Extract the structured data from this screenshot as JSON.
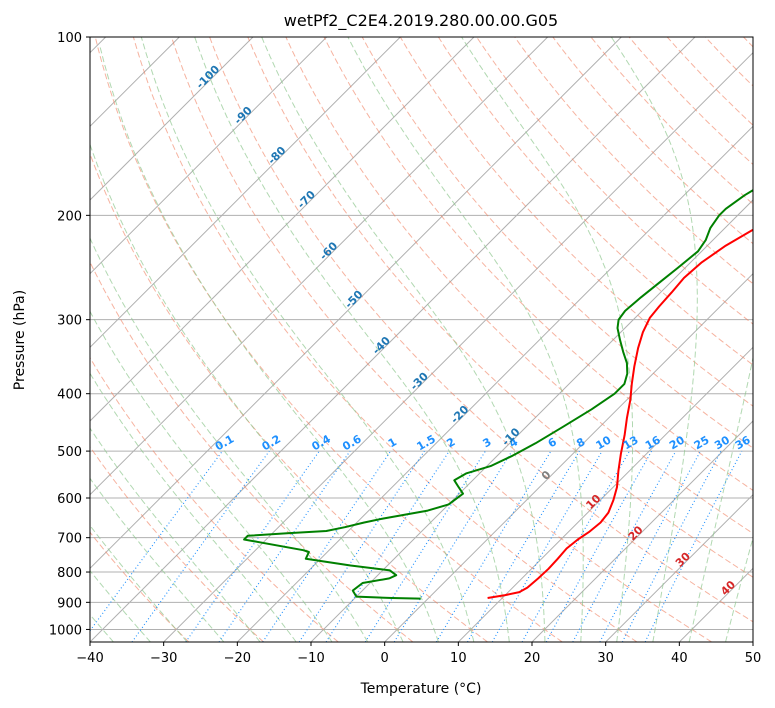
{
  "chart_data": {
    "type": "line",
    "title": "wetPf2_C2E4.2019.280.00.00.G05",
    "xlabel": "Temperature (°C)",
    "ylabel": "Pressure (hPa)",
    "xlim": [
      -40,
      50
    ],
    "ylim": [
      1050,
      100
    ],
    "y_scale": "log",
    "grid": true,
    "x_ticks": [
      -40,
      -30,
      -20,
      -10,
      0,
      10,
      20,
      30,
      40,
      50
    ],
    "y_ticks": [
      100,
      200,
      300,
      400,
      500,
      600,
      700,
      800,
      900,
      1000
    ],
    "series": [
      {
        "color": "#ff0000",
        "points": [
          [
            8,
            885
          ],
          [
            10,
            875
          ],
          [
            11.5,
            865
          ],
          [
            12,
            850
          ],
          [
            12.2,
            820
          ],
          [
            12.3,
            790
          ],
          [
            12.2,
            760
          ],
          [
            12.0,
            730
          ],
          [
            12.3,
            705
          ],
          [
            12.8,
            685
          ],
          [
            13.1,
            660
          ],
          [
            12.8,
            635
          ],
          [
            11.8,
            605
          ],
          [
            10.5,
            575
          ],
          [
            8.5,
            540
          ],
          [
            6.5,
            505
          ],
          [
            4.5,
            470
          ],
          [
            2.5,
            440
          ],
          [
            0.5,
            410
          ],
          [
            -1.5,
            385
          ],
          [
            -3.5,
            360
          ],
          [
            -5.5,
            335
          ],
          [
            -7,
            315
          ],
          [
            -8,
            298
          ],
          [
            -8.3,
            285
          ],
          [
            -8.5,
            270
          ],
          [
            -8.8,
            255
          ],
          [
            -8.5,
            240
          ],
          [
            -7.5,
            225
          ],
          [
            -6,
            212
          ],
          [
            -4,
            200
          ],
          [
            -2,
            190
          ],
          [
            0,
            180
          ],
          [
            2,
            172
          ],
          [
            5,
            164
          ],
          [
            8,
            157
          ],
          [
            12,
            150
          ],
          [
            14,
            143
          ],
          [
            15,
            136
          ],
          [
            16,
            130
          ],
          [
            17,
            125
          ],
          [
            18.5,
            118
          ],
          [
            19.5,
            112
          ],
          [
            20.5,
            106
          ],
          [
            21.5,
            100
          ]
        ]
      },
      {
        "color": "#008000",
        "points": [
          [
            -1,
            887
          ],
          [
            -5,
            885
          ],
          [
            -10,
            880
          ],
          [
            -11.3,
            860
          ],
          [
            -11,
            835
          ],
          [
            -8,
            820
          ],
          [
            -7.5,
            810
          ],
          [
            -9,
            795
          ],
          [
            -15,
            780
          ],
          [
            -22,
            760
          ],
          [
            -22.5,
            740
          ],
          [
            -23.5,
            735
          ],
          [
            -33,
            705
          ],
          [
            -33,
            695
          ],
          [
            -28,
            688
          ],
          [
            -23,
            682
          ],
          [
            -21,
            672
          ],
          [
            -19,
            660
          ],
          [
            -17,
            650
          ],
          [
            -12,
            630
          ],
          [
            -10,
            615
          ],
          [
            -9.5,
            590
          ],
          [
            -11,
            575
          ],
          [
            -12.5,
            560
          ],
          [
            -11.8,
            545
          ],
          [
            -9.5,
            530
          ],
          [
            -8,
            510
          ],
          [
            -6.5,
            485
          ],
          [
            -5,
            455
          ],
          [
            -3.5,
            425
          ],
          [
            -2.5,
            400
          ],
          [
            -2.5,
            385
          ],
          [
            -3.5,
            370
          ],
          [
            -5,
            355
          ],
          [
            -7,
            340
          ],
          [
            -9,
            325
          ],
          [
            -11,
            310
          ],
          [
            -12,
            300
          ],
          [
            -12.3,
            290
          ],
          [
            -12,
            275
          ],
          [
            -11.5,
            260
          ],
          [
            -11,
            245
          ],
          [
            -10.5,
            230
          ],
          [
            -11,
            220
          ],
          [
            -12,
            210
          ],
          [
            -12.5,
            200
          ],
          [
            -12.5,
            195
          ],
          [
            -11.8,
            185
          ],
          [
            -10.5,
            175
          ],
          [
            -10.5,
            165
          ],
          [
            -11.5,
            158
          ],
          [
            -13,
            152
          ],
          [
            -12.5,
            148
          ],
          [
            -11,
            145
          ],
          [
            -7,
            141
          ],
          [
            -4,
            135
          ],
          [
            -2,
            128
          ],
          [
            -0.5,
            120
          ],
          [
            1,
            112
          ],
          [
            2,
            106
          ],
          [
            3,
            100
          ]
        ]
      }
    ],
    "dry_adiabat_labels": [
      "-100",
      "-90",
      "-80",
      "-70",
      "-60",
      "-50",
      "-40",
      "-30",
      "-20",
      "-10"
    ],
    "moist_adiabat_labels": [
      "0",
      "10",
      "20",
      "30",
      "40"
    ],
    "mixing_ratio_labels": [
      "0.1",
      "0.2",
      "0.4",
      "0.6",
      "1",
      "1.5",
      "2",
      "3",
      "4",
      "6",
      "8",
      "10",
      "13",
      "16",
      "20",
      "25",
      "30",
      "36"
    ],
    "colors": {
      "isotherm": "#b0b0b0",
      "dry_adiabat": "#f08060",
      "moist_adiabat": "#90c890",
      "mixing_ratio": "#1e90ff",
      "dry_label": "#1f77b4",
      "moist_label": "#d62728",
      "zero_label": "#808080"
    }
  }
}
